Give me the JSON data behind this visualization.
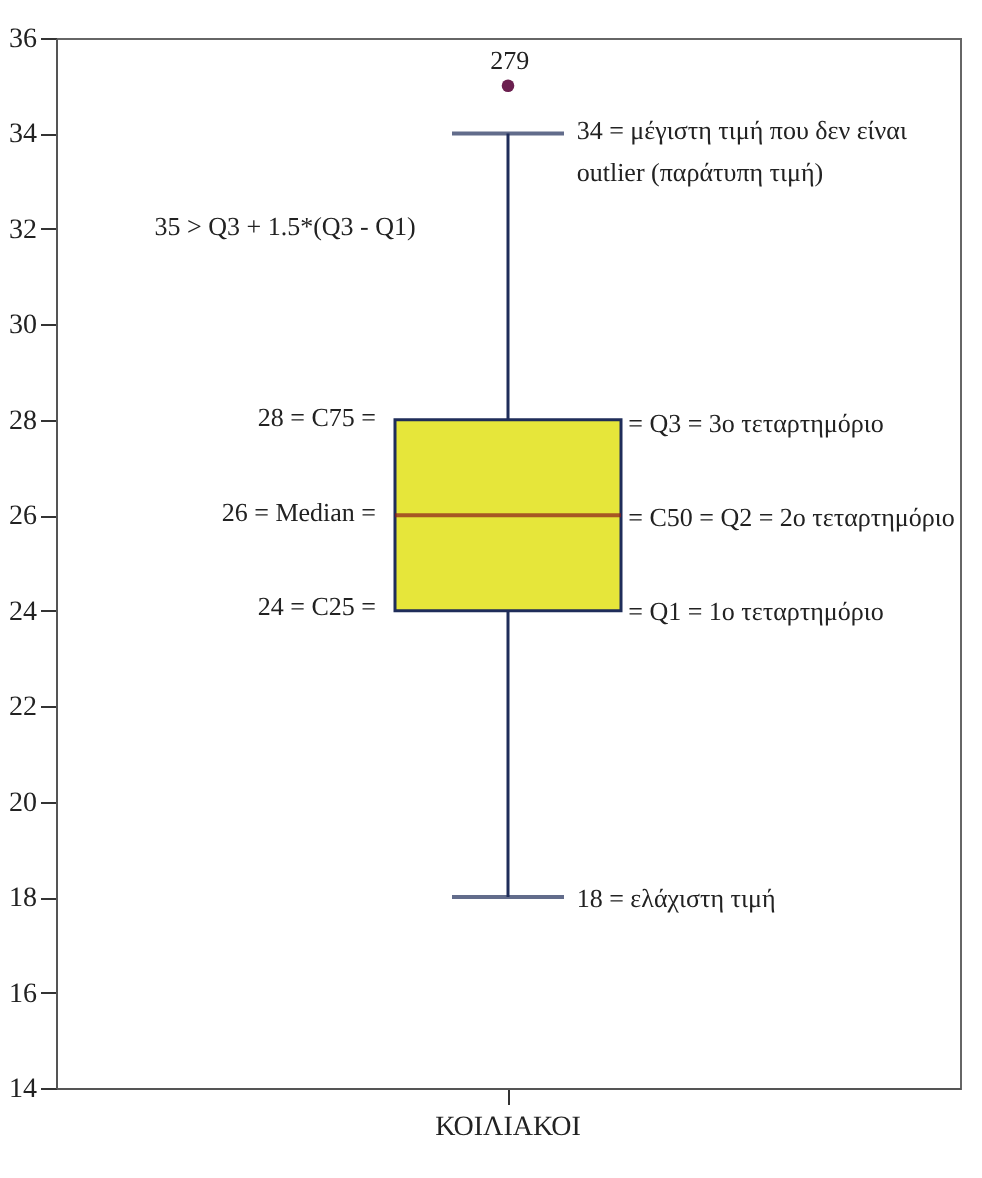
{
  "chart_data": {
    "type": "box",
    "categories": [
      "ΚΟΙΛΙΑΚΟΙ"
    ],
    "series": [
      {
        "color": "#e6e63a",
        "boxes": [
          {
            "low": 18,
            "q1": 24,
            "median": 26,
            "q3": 28,
            "high": 34,
            "outliers": [
              35
            ]
          }
        ]
      }
    ],
    "ylim": [
      14,
      36
    ],
    "yticks": [
      14,
      16,
      18,
      20,
      22,
      24,
      26,
      28,
      30,
      32,
      34,
      36
    ],
    "grid": false,
    "annotations": [
      "279",
      "28 = C75 =",
      "26 = Median =",
      "24 = C25 =",
      "34 = μέγιστη τιμή που δεν είναι\n      outlier (παράτυπη τιμή)",
      "= Q3 = 3ο τεταρτημόριο",
      "= C50 = Q2 = 2ο τεταρτημόριο",
      "= Q1 = 1ο τεταρτημόριο",
      "18 = ελάχιστη τιμή",
      "35 > Q3 + 1.5*(Q3 - Q1)"
    ]
  }
}
